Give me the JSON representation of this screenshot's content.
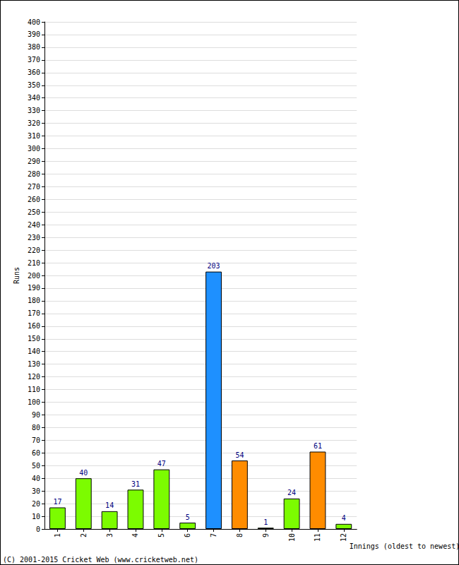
{
  "chart_data": {
    "type": "bar",
    "categories": [
      "1",
      "2",
      "3",
      "4",
      "5",
      "6",
      "7",
      "8",
      "9",
      "10",
      "11",
      "12"
    ],
    "values": [
      17,
      40,
      14,
      31,
      47,
      5,
      203,
      54,
      1,
      24,
      61,
      4
    ],
    "colors": [
      "#7cfc00",
      "#7cfc00",
      "#7cfc00",
      "#7cfc00",
      "#7cfc00",
      "#7cfc00",
      "#1e90ff",
      "#ff8c00",
      "#7cfc00",
      "#7cfc00",
      "#ff8c00",
      "#7cfc00"
    ],
    "y_label": "Runs",
    "x_label": "Innings (oldest to newest)",
    "annotations": [
      "(C) 2001-2015 Cricket Web (www.cricketweb.net)"
    ],
    "ylim": [
      0,
      400
    ],
    "yticks": [
      0,
      10,
      20,
      30,
      40,
      50,
      60,
      70,
      80,
      90,
      100,
      110,
      120,
      130,
      140,
      150,
      160,
      170,
      180,
      190,
      200,
      210,
      220,
      230,
      240,
      250,
      260,
      270,
      280,
      290,
      300,
      310,
      320,
      330,
      340,
      350,
      360,
      370,
      380,
      390,
      400
    ],
    "grid": true,
    "data_labels": true
  }
}
